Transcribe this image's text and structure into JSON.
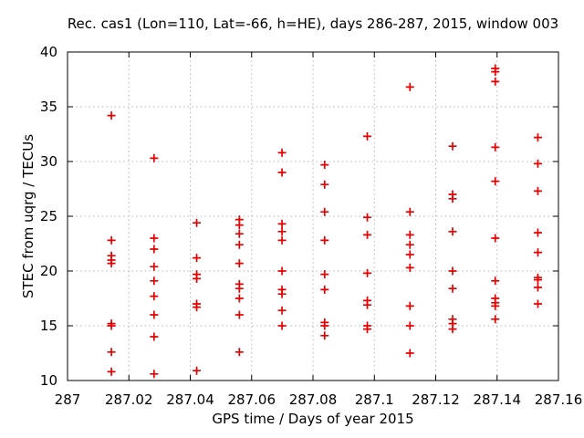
{
  "chart_data": {
    "type": "scatter",
    "title": "Rec. cas1 (Lon=110, Lat=-66, h=HE), days 286-287, 2015, window 003",
    "xlabel": "GPS time / Days of year 2015",
    "ylabel": "STEC from uqrg / TECUs",
    "xlim": [
      287.0,
      287.16
    ],
    "ylim": [
      10,
      40
    ],
    "xticks": [
      {
        "v": 287.0,
        "label": "287"
      },
      {
        "v": 287.02,
        "label": "287.02"
      },
      {
        "v": 287.04,
        "label": "287.04"
      },
      {
        "v": 287.06,
        "label": "287.06"
      },
      {
        "v": 287.08,
        "label": "287.08"
      },
      {
        "v": 287.1,
        "label": "287.1"
      },
      {
        "v": 287.12,
        "label": "287.12"
      },
      {
        "v": 287.14,
        "label": "287.14"
      },
      {
        "v": 287.16,
        "label": "287.16"
      }
    ],
    "yticks": [
      {
        "v": 10,
        "label": "10"
      },
      {
        "v": 15,
        "label": "15"
      },
      {
        "v": 20,
        "label": "20"
      },
      {
        "v": 25,
        "label": "25"
      },
      {
        "v": 30,
        "label": "30"
      },
      {
        "v": 35,
        "label": "35"
      },
      {
        "v": 40,
        "label": "40"
      }
    ],
    "grid": true,
    "grid_style": "dotted",
    "legend": "none",
    "marker": {
      "shape": "plus",
      "size": 9,
      "color": "#e60000"
    },
    "colors": {
      "marker": "#e60000",
      "grid": "#b4b4b4",
      "border": "#000000",
      "text": "#000000",
      "background": "#ffffff"
    },
    "series": [
      {
        "name": "STEC from uqrg",
        "groups": [
          {
            "x": 287.0143,
            "y": [
              34.2,
              22.8,
              21.4,
              21.0,
              20.7,
              15.2,
              15.0,
              12.6,
              10.8
            ]
          },
          {
            "x": 287.0282,
            "y": [
              30.3,
              23.0,
              22.0,
              20.4,
              19.1,
              17.7,
              16.0,
              14.0,
              10.6
            ]
          },
          {
            "x": 287.0421,
            "y": [
              24.4,
              21.2,
              19.7,
              19.3,
              17.0,
              16.7,
              10.9
            ]
          },
          {
            "x": 287.056,
            "y": [
              24.7,
              24.2,
              23.4,
              22.4,
              20.7,
              18.8,
              18.4,
              17.5,
              16.0,
              12.6
            ]
          },
          {
            "x": 287.0699,
            "y": [
              30.8,
              29.0,
              24.3,
              23.6,
              22.8,
              20.0,
              18.3,
              17.9,
              16.4,
              15.0
            ]
          },
          {
            "x": 287.0838,
            "y": [
              29.7,
              27.9,
              25.4,
              22.8,
              19.7,
              18.3,
              15.3,
              15.0,
              14.1
            ]
          },
          {
            "x": 287.0977,
            "y": [
              32.3,
              24.9,
              23.3,
              19.8,
              17.3,
              16.9,
              15.0,
              14.7
            ]
          },
          {
            "x": 287.1116,
            "y": [
              36.8,
              25.4,
              23.3,
              22.4,
              21.5,
              20.3,
              16.8,
              15.0,
              12.5
            ]
          },
          {
            "x": 287.1255,
            "y": [
              31.4,
              27.0,
              26.6,
              23.6,
              20.0,
              18.4,
              15.6,
              15.2,
              14.7
            ]
          },
          {
            "x": 287.1394,
            "y": [
              38.5,
              38.2,
              37.3,
              31.3,
              28.2,
              23.0,
              19.1,
              17.5,
              17.1,
              16.8,
              15.6
            ]
          },
          {
            "x": 287.1533,
            "y": [
              32.2,
              29.8,
              27.3,
              23.5,
              21.7,
              19.4,
              19.2,
              18.5,
              17.0
            ]
          }
        ]
      }
    ]
  }
}
